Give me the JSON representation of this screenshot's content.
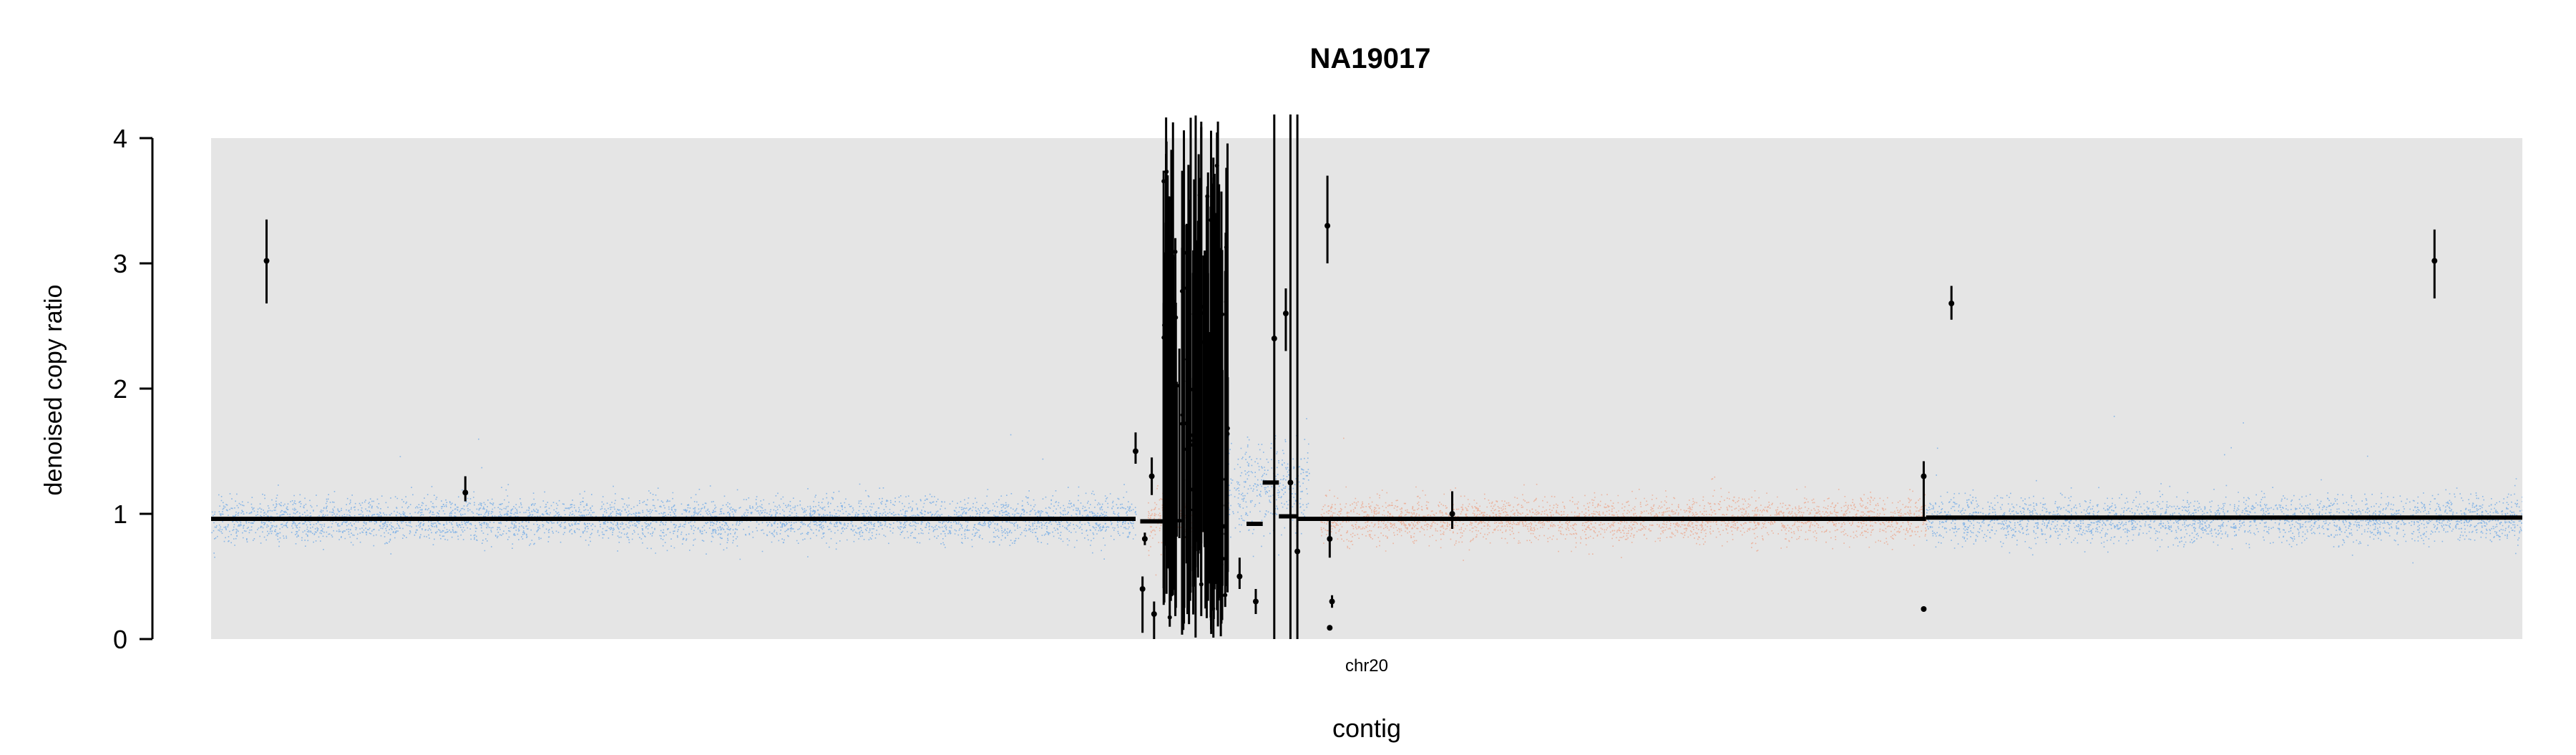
{
  "chart_data": {
    "type": "scatter",
    "title": "NA19017",
    "xlabel": "contig",
    "ylabel": "denoised copy ratio",
    "ylim": [
      0,
      4
    ],
    "yticks": [
      0,
      1,
      2,
      3,
      4
    ],
    "xticks": [
      {
        "label": "chr20",
        "pos": 0.5
      }
    ],
    "grid": false,
    "legend": "none",
    "background_color": "#e5e5e5",
    "series": [
      {
        "kind": "copy-ratio points",
        "description": "dense per-bin denoised copy ratios, colored by segment",
        "segments": [
          {
            "x": [
              0.0,
              0.4
            ],
            "center": 0.96,
            "spread": 0.09,
            "color": "#3d8fe8"
          },
          {
            "x": [
              0.405,
              0.435
            ],
            "center": 0.96,
            "spread": 0.12,
            "color": "#f08a65"
          },
          {
            "x": [
              0.44,
              0.475
            ],
            "center": 1.22,
            "spread": 0.2,
            "color": "#3d8fe8"
          },
          {
            "x": [
              0.48,
              0.742
            ],
            "center": 0.96,
            "spread": 0.09,
            "color": "#f08a65"
          },
          {
            "x": [
              0.742,
              1.0
            ],
            "center": 0.96,
            "spread": 0.09,
            "color": "#3d8fe8"
          }
        ]
      },
      {
        "kind": "segment means",
        "color": "#000000",
        "segments": [
          {
            "x": [
              0.0,
              0.4
            ],
            "y": 0.96
          },
          {
            "x": [
              0.402,
              0.412
            ],
            "y": 0.94
          },
          {
            "x": [
              0.43,
              0.44
            ],
            "y": 0.9
          },
          {
            "x": [
              0.448,
              0.455
            ],
            "y": 0.92
          },
          {
            "x": [
              0.455,
              0.462
            ],
            "y": 1.25
          },
          {
            "x": [
              0.462,
              0.47
            ],
            "y": 0.98
          },
          {
            "x": [
              0.47,
              0.742
            ],
            "y": 0.96
          },
          {
            "x": [
              0.742,
              1.0
            ],
            "y": 0.97
          }
        ]
      },
      {
        "kind": "outlier segments",
        "color": "#000000",
        "items": [
          {
            "x": 0.024,
            "y": 3.02,
            "ylow": 2.68,
            "yhigh": 3.35
          },
          {
            "x": 0.11,
            "y": 1.17,
            "ylow": 1.1,
            "yhigh": 1.3
          },
          {
            "x": 0.4,
            "y": 1.5,
            "ylow": 1.4,
            "yhigh": 1.65
          },
          {
            "x": 0.403,
            "y": 0.4,
            "ylow": 0.05,
            "yhigh": 0.5
          },
          {
            "x": 0.404,
            "y": 0.8,
            "ylow": 0.75,
            "yhigh": 0.85
          },
          {
            "x": 0.407,
            "y": 1.3,
            "ylow": 1.15,
            "yhigh": 1.45
          },
          {
            "x": 0.408,
            "y": 0.2,
            "ylow": 0.0,
            "yhigh": 0.3
          },
          {
            "x": 0.435,
            "y": 0.8,
            "ylow": 0.7,
            "yhigh": 0.9
          },
          {
            "x": 0.445,
            "y": 0.5,
            "ylow": 0.4,
            "yhigh": 0.65
          },
          {
            "x": 0.452,
            "y": 0.3,
            "ylow": 0.2,
            "yhigh": 0.4
          },
          {
            "x": 0.46,
            "y": 2.4,
            "ylow": 0.0,
            "yhigh": 4.2
          },
          {
            "x": 0.465,
            "y": 2.6,
            "ylow": 2.3,
            "yhigh": 2.8
          },
          {
            "x": 0.467,
            "y": 1.25,
            "ylow": 0.0,
            "yhigh": 4.2
          },
          {
            "x": 0.47,
            "y": 0.7,
            "ylow": 0.0,
            "yhigh": 4.2
          },
          {
            "x": 0.483,
            "y": 3.3,
            "ylow": 3.0,
            "yhigh": 3.7
          },
          {
            "x": 0.484,
            "y": 0.8,
            "ylow": 0.65,
            "yhigh": 0.95
          },
          {
            "x": 0.485,
            "y": 0.3,
            "ylow": 0.25,
            "yhigh": 0.35
          },
          {
            "x": 0.484,
            "y": 0.09,
            "ylow": 0.08,
            "yhigh": 0.1
          },
          {
            "x": 0.537,
            "y": 1.0,
            "ylow": 0.88,
            "yhigh": 1.18
          },
          {
            "x": 0.741,
            "y": 1.3,
            "ylow": 0.95,
            "yhigh": 1.42
          },
          {
            "x": 0.741,
            "y": 0.24,
            "ylow": 0.22,
            "yhigh": 0.26
          },
          {
            "x": 0.753,
            "y": 2.68,
            "ylow": 2.55,
            "yhigh": 2.82
          },
          {
            "x": 0.962,
            "y": 3.02,
            "ylow": 2.72,
            "yhigh": 3.27
          }
        ]
      },
      {
        "kind": "dense vertical bars",
        "color": "#000000",
        "x_range": [
          0.412,
          0.44
        ],
        "count": 110,
        "ylow_range": [
          0.0,
          0.9
        ],
        "yhigh_range": [
          2.0,
          4.2
        ]
      }
    ]
  }
}
